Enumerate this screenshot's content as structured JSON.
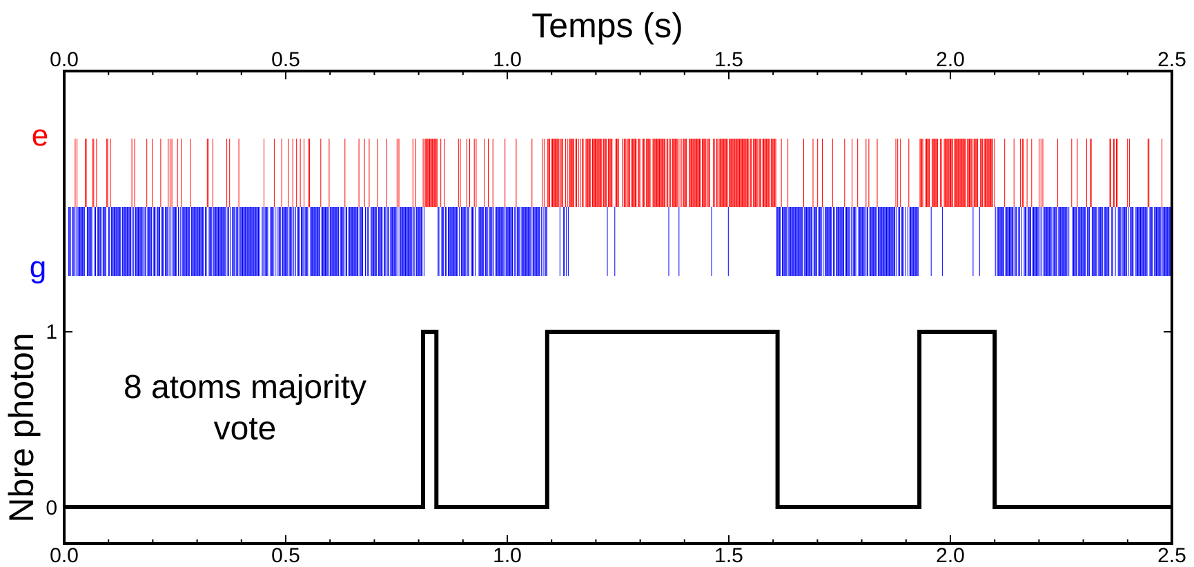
{
  "chart_data": {
    "type": "line",
    "title": "",
    "xlabel": "Temps (s)",
    "ylabel": "Nbre photon",
    "xlim": [
      0.0,
      2.5
    ],
    "ylim": [
      -0.2,
      1.3
    ],
    "x_ticks": [
      "0.0",
      "0.5",
      "1.0",
      "1.5",
      "2.0",
      "2.5"
    ],
    "y_ticks": [
      "0",
      "1"
    ],
    "state_labels": {
      "e": "e",
      "g": "g"
    },
    "annotation_lines": [
      "8 atoms majority",
      "vote"
    ],
    "colors": {
      "e": "#ff0000",
      "g": "#0000ff",
      "trace": "#000000"
    },
    "grid": false,
    "series": [
      {
        "x": [
          0.0,
          0.81,
          0.81,
          0.84,
          0.84,
          1.09,
          1.09,
          1.61,
          1.61,
          1.93,
          1.93,
          2.1,
          2.1,
          2.5
        ],
        "y": [
          0,
          0,
          1,
          1,
          0,
          0,
          1,
          1,
          0,
          0,
          1,
          1,
          0,
          0
        ]
      }
    ],
    "density_segments": [
      {
        "start": 0.0,
        "end": 0.81,
        "state": "g"
      },
      {
        "start": 0.81,
        "end": 0.84,
        "state": "e"
      },
      {
        "start": 0.84,
        "end": 1.09,
        "state": "g"
      },
      {
        "start": 1.09,
        "end": 1.61,
        "state": "e"
      },
      {
        "start": 1.61,
        "end": 1.93,
        "state": "g"
      },
      {
        "start": 1.93,
        "end": 2.1,
        "state": "e"
      },
      {
        "start": 2.1,
        "end": 2.5,
        "state": "g"
      }
    ]
  }
}
